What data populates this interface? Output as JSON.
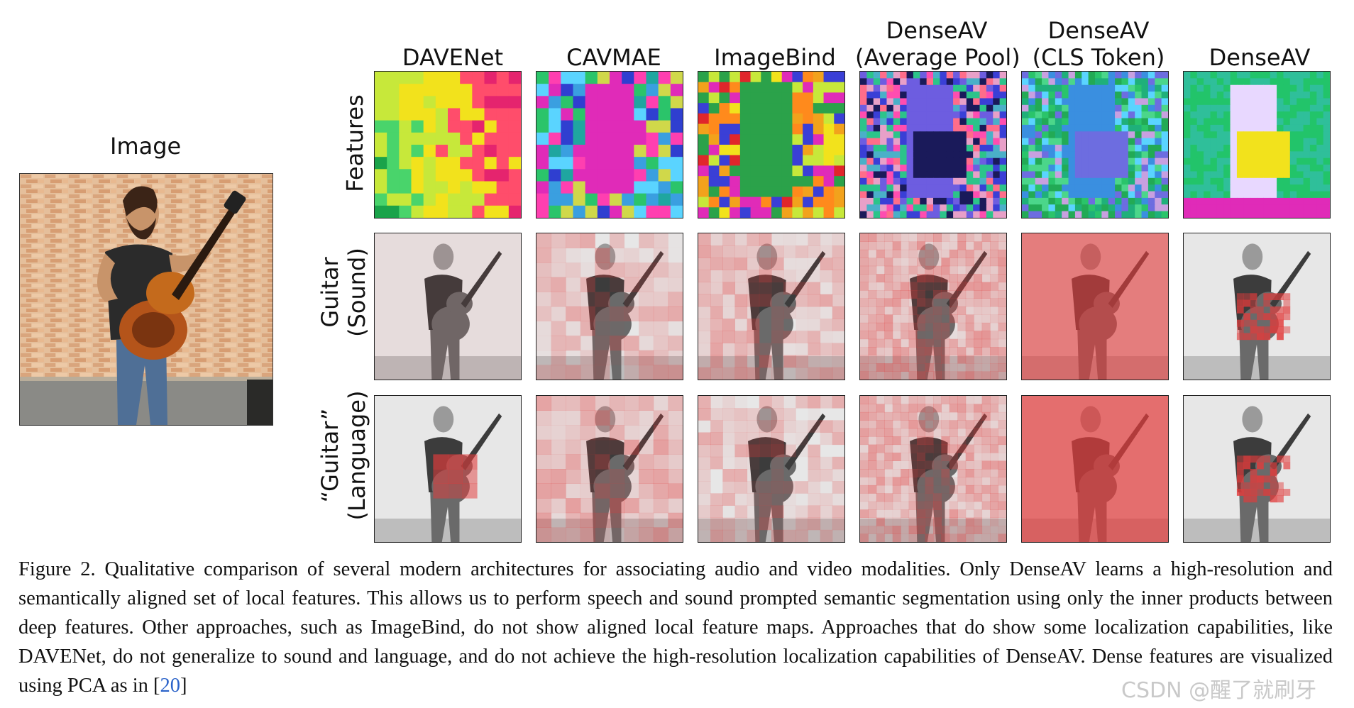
{
  "figure": {
    "image_label": "Image",
    "columns": [
      {
        "line1": "DAVENet",
        "line2": ""
      },
      {
        "line1": "CAVMAE",
        "line2": ""
      },
      {
        "line1": "ImageBind",
        "line2": ""
      },
      {
        "line1": "DenseAV",
        "line2": "(Average Pool)"
      },
      {
        "line1": "DenseAV",
        "line2": "(CLS Token)"
      },
      {
        "line1": "DenseAV",
        "line2": ""
      }
    ],
    "rows": [
      {
        "line1": "Features",
        "line2": ""
      },
      {
        "line1": "Guitar",
        "line2": "(Sound)"
      },
      {
        "line1": "“Guitar”",
        "line2": "(Language)"
      }
    ]
  },
  "caption": {
    "text": "Figure 2. Qualitative comparison of several modern architectures for associating audio and video modalities. Only DenseAV learns a high-resolution and semantically aligned set of local features. This allows us to perform speech and sound prompted semantic segmentation using only the inner products between deep features. Other approaches, such as ImageBind, do not show aligned local feature maps. Approaches that do show some localization capabilities, like DAVENet, do not generalize to sound and language, and do not achieve the high-resolution localization capabilities of DenseAV. Dense features are visualized using PCA as in [",
    "ref": "20",
    "end": "]"
  },
  "watermark": "CSDN @醒了就刷牙",
  "colors": {
    "heat": "#e23b3b",
    "feature_yellow": "#f2e21c",
    "feature_green": "#22c46a",
    "feature_blue": "#3a3fd6",
    "feature_magenta": "#e02bb8"
  }
}
